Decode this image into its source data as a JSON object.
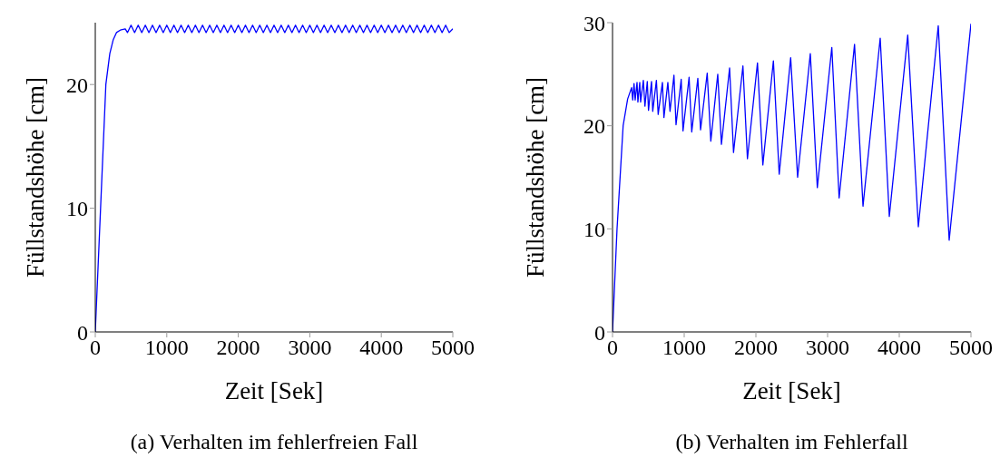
{
  "chart_data": [
    {
      "type": "line",
      "xlabel": "Zeit [Sek]",
      "ylabel": "Füllstandshöhe [cm]",
      "xlim": [
        0,
        5000
      ],
      "ylim": [
        0,
        25
      ],
      "xticks": [
        0,
        1000,
        2000,
        3000,
        4000,
        5000
      ],
      "yticks": [
        0,
        10,
        20
      ],
      "annotations": [
        "(a) Verhalten im fehlerfreien Fall"
      ],
      "series": [
        {
          "color": "#0000ff",
          "x": [
            0,
            74,
            148,
            203,
            250,
            296,
            350,
            419,
            450,
            500,
            550,
            600,
            650,
            700,
            750,
            800,
            850,
            900,
            950,
            1000,
            1050,
            1100,
            1150,
            1200,
            1250,
            1300,
            1350,
            1400,
            1450,
            1500,
            1550,
            1600,
            1650,
            1700,
            1750,
            1800,
            1850,
            1900,
            1950,
            2000,
            2050,
            2100,
            2150,
            2200,
            2250,
            2300,
            2350,
            2400,
            2450,
            2500,
            2550,
            2600,
            2650,
            2700,
            2750,
            2800,
            2850,
            2900,
            2950,
            3000,
            3050,
            3100,
            3150,
            3200,
            3250,
            3300,
            3350,
            3400,
            3450,
            3500,
            3550,
            3600,
            3650,
            3700,
            3750,
            3800,
            3850,
            3900,
            3950,
            4000,
            4050,
            4100,
            4150,
            4200,
            4250,
            4300,
            4350,
            4400,
            4450,
            4500,
            4550,
            4600,
            4650,
            4700,
            4750,
            4800,
            4850,
            4900,
            4950,
            5000
          ],
          "values": [
            0,
            10,
            20,
            22.5,
            23.6,
            24.2,
            24.4,
            24.5,
            24.2,
            24.8,
            24.2,
            24.8,
            24.2,
            24.8,
            24.2,
            24.8,
            24.2,
            24.8,
            24.2,
            24.8,
            24.2,
            24.8,
            24.2,
            24.8,
            24.2,
            24.8,
            24.2,
            24.8,
            24.2,
            24.8,
            24.2,
            24.8,
            24.2,
            24.8,
            24.2,
            24.8,
            24.2,
            24.8,
            24.2,
            24.8,
            24.2,
            24.8,
            24.2,
            24.8,
            24.2,
            24.8,
            24.2,
            24.8,
            24.2,
            24.8,
            24.2,
            24.8,
            24.2,
            24.8,
            24.2,
            24.8,
            24.2,
            24.8,
            24.2,
            24.8,
            24.2,
            24.8,
            24.2,
            24.8,
            24.2,
            24.8,
            24.2,
            24.8,
            24.2,
            24.8,
            24.2,
            24.8,
            24.2,
            24.8,
            24.2,
            24.8,
            24.2,
            24.8,
            24.2,
            24.8,
            24.2,
            24.8,
            24.2,
            24.8,
            24.2,
            24.8,
            24.2,
            24.8,
            24.2,
            24.8,
            24.2,
            24.8,
            24.2,
            24.8,
            24.2,
            24.8,
            24.2,
            24.8,
            24.2,
            24.5
          ]
        }
      ]
    },
    {
      "type": "line",
      "xlabel": "Zeit [Sek]",
      "ylabel": "Füllstandshöhe [cm]",
      "xlim": [
        0,
        5000
      ],
      "ylim": [
        0,
        30
      ],
      "xticks": [
        0,
        1000,
        2000,
        3000,
        4000,
        5000
      ],
      "yticks": [
        0,
        10,
        20,
        30
      ],
      "annotations": [
        "(b) Verhalten im Fehlerfall"
      ],
      "series": [
        {
          "color": "#0000ff",
          "x": [
            0,
            63,
            148,
            211,
            266,
            282,
            300,
            316,
            342,
            354,
            380,
            392,
            430,
            452,
            485,
            502,
            544,
            561,
            612,
            637,
            696,
            717,
            772,
            802,
            857,
            886,
            958,
            983,
            1068,
            1105,
            1190,
            1228,
            1321,
            1371,
            1468,
            1519,
            1633,
            1688,
            1819,
            1882,
            2022,
            2097,
            2244,
            2325,
            2485,
            2582,
            2759,
            2857,
            3059,
            3161,
            3376,
            3494,
            3734,
            3861,
            4118,
            4266,
            4544,
            4696,
            5000
          ],
          "values": [
            0,
            10,
            20,
            22.6,
            23.7,
            22.5,
            24.1,
            22.5,
            24.2,
            22.3,
            24.2,
            22.3,
            24.4,
            21.9,
            24.3,
            21.5,
            24.3,
            21.4,
            24.4,
            21.1,
            24.2,
            20.8,
            24.2,
            21.4,
            24.9,
            20.1,
            24.5,
            19.5,
            24.7,
            19.4,
            24.6,
            19.6,
            25.1,
            18.5,
            25.0,
            18.2,
            25.6,
            17.4,
            25.8,
            16.8,
            26.1,
            16.2,
            26.3,
            15.3,
            26.6,
            15.0,
            27.0,
            14.0,
            27.6,
            13.0,
            27.9,
            12.2,
            28.5,
            11.2,
            28.8,
            10.2,
            29.7,
            8.9,
            29.9
          ]
        }
      ]
    }
  ]
}
